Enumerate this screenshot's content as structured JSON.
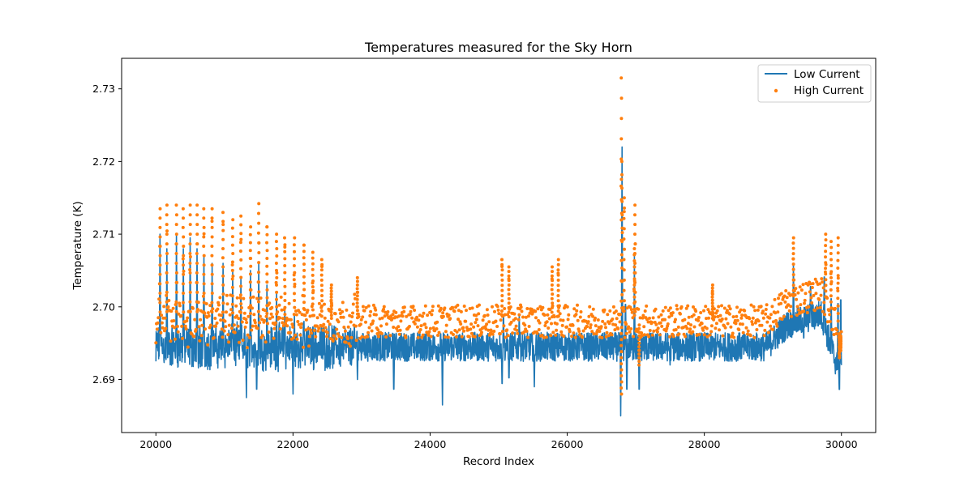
{
  "chart_data": {
    "type": "line+scatter",
    "title": "Temperatures measured for the Sky Horn",
    "xlabel": "Record Index",
    "ylabel": "Temperature (K)",
    "xlim": [
      19500,
      30500
    ],
    "ylim": [
      2.6827,
      2.7342
    ],
    "xticks": [
      20000,
      22000,
      24000,
      26000,
      28000,
      30000
    ],
    "yticks": [
      2.69,
      2.7,
      2.71,
      2.72,
      2.73
    ],
    "xtick_labels": [
      "20000",
      "22000",
      "24000",
      "26000",
      "28000",
      "30000"
    ],
    "ytick_labels": [
      "2.69",
      "2.70",
      "2.71",
      "2.72",
      "2.73"
    ],
    "legend_position": "top-right",
    "x_range": [
      20000,
      30000
    ],
    "series": [
      {
        "name": "Low Current",
        "kind": "line",
        "color": "#1f77b4",
        "baseline": 2.6945,
        "noise_range": [
          2.6925,
          2.6965
        ],
        "profile_x": [
          20000,
          23000,
          28900,
          29200,
          29700,
          30000
        ],
        "profile_y": [
          2.6945,
          2.6945,
          2.6945,
          2.6975,
          2.699,
          2.69
        ],
        "spikes": [
          {
            "x": 20000,
            "y": 2.6925
          },
          {
            "x": 20060,
            "y": 2.71
          },
          {
            "x": 20160,
            "y": 2.708
          },
          {
            "x": 20300,
            "y": 2.71
          },
          {
            "x": 20400,
            "y": 2.708
          },
          {
            "x": 20500,
            "y": 2.7095
          },
          {
            "x": 20600,
            "y": 2.708
          },
          {
            "x": 20650,
            "y": 2.691
          },
          {
            "x": 20700,
            "y": 2.707
          },
          {
            "x": 20820,
            "y": 2.706
          },
          {
            "x": 20980,
            "y": 2.706
          },
          {
            "x": 21120,
            "y": 2.705
          },
          {
            "x": 21240,
            "y": 2.704
          },
          {
            "x": 21320,
            "y": 2.6875
          },
          {
            "x": 21380,
            "y": 2.705
          },
          {
            "x": 21470,
            "y": 2.687
          },
          {
            "x": 21500,
            "y": 2.706
          },
          {
            "x": 21620,
            "y": 2.703
          },
          {
            "x": 21750,
            "y": 2.691
          },
          {
            "x": 21760,
            "y": 2.702
          },
          {
            "x": 21880,
            "y": 2.7
          },
          {
            "x": 22000,
            "y": 2.688
          },
          {
            "x": 22020,
            "y": 2.699
          },
          {
            "x": 22160,
            "y": 2.698
          },
          {
            "x": 22290,
            "y": 2.698
          },
          {
            "x": 22420,
            "y": 2.697
          },
          {
            "x": 22940,
            "y": 2.69
          },
          {
            "x": 23470,
            "y": 2.687
          },
          {
            "x": 24000,
            "y": 2.696
          },
          {
            "x": 24180,
            "y": 2.6865
          },
          {
            "x": 25050,
            "y": 2.688
          },
          {
            "x": 25070,
            "y": 2.7
          },
          {
            "x": 25150,
            "y": 2.689
          },
          {
            "x": 25300,
            "y": 2.699
          },
          {
            "x": 25520,
            "y": 2.689
          },
          {
            "x": 26780,
            "y": 2.685
          },
          {
            "x": 26800,
            "y": 2.722
          },
          {
            "x": 26850,
            "y": 2.702
          },
          {
            "x": 26870,
            "y": 2.687
          },
          {
            "x": 26980,
            "y": 2.707
          },
          {
            "x": 27050,
            "y": 2.687
          },
          {
            "x": 27500,
            "y": 2.692
          },
          {
            "x": 29300,
            "y": 2.706
          },
          {
            "x": 29450,
            "y": 2.695
          },
          {
            "x": 29550,
            "y": 2.704
          },
          {
            "x": 29750,
            "y": 2.706
          },
          {
            "x": 29850,
            "y": 2.703
          },
          {
            "x": 29950,
            "y": 2.703
          },
          {
            "x": 29970,
            "y": 2.688
          },
          {
            "x": 29990,
            "y": 2.704
          }
        ]
      },
      {
        "name": "High Current",
        "kind": "scatter",
        "color": "#ff7f0e",
        "baseline": 2.698,
        "noise_range": [
          2.6955,
          2.7
        ],
        "profile_x": [
          20000,
          23000,
          28900,
          29200,
          29700,
          30000
        ],
        "profile_y": [
          2.698,
          2.698,
          2.698,
          2.7005,
          2.702,
          2.696
        ],
        "spikes": [
          {
            "x": 20060,
            "y": 2.7135
          },
          {
            "x": 20160,
            "y": 2.714
          },
          {
            "x": 20300,
            "y": 2.714
          },
          {
            "x": 20400,
            "y": 2.7135
          },
          {
            "x": 20500,
            "y": 2.714
          },
          {
            "x": 20600,
            "y": 2.714
          },
          {
            "x": 20700,
            "y": 2.7135
          },
          {
            "x": 20820,
            "y": 2.7135
          },
          {
            "x": 20980,
            "y": 2.713
          },
          {
            "x": 21120,
            "y": 2.712
          },
          {
            "x": 21240,
            "y": 2.7125
          },
          {
            "x": 21380,
            "y": 2.711
          },
          {
            "x": 21500,
            "y": 2.7142
          },
          {
            "x": 21620,
            "y": 2.711
          },
          {
            "x": 21760,
            "y": 2.71
          },
          {
            "x": 21880,
            "y": 2.7095
          },
          {
            "x": 22020,
            "y": 2.7095
          },
          {
            "x": 22160,
            "y": 2.7085
          },
          {
            "x": 22290,
            "y": 2.7075
          },
          {
            "x": 22420,
            "y": 2.7065
          },
          {
            "x": 22560,
            "y": 2.703
          },
          {
            "x": 22940,
            "y": 2.704
          },
          {
            "x": 25050,
            "y": 2.7065
          },
          {
            "x": 25150,
            "y": 2.7055
          },
          {
            "x": 25870,
            "y": 2.7065
          },
          {
            "x": 25780,
            "y": 2.7055
          },
          {
            "x": 26790,
            "y": 2.7315
          },
          {
            "x": 26800,
            "y": 2.72
          },
          {
            "x": 26830,
            "y": 2.715
          },
          {
            "x": 26990,
            "y": 2.714
          },
          {
            "x": 26980,
            "y": 2.708
          },
          {
            "x": 26790,
            "y": 2.688
          },
          {
            "x": 27050,
            "y": 2.692
          },
          {
            "x": 28120,
            "y": 2.703
          },
          {
            "x": 29300,
            "y": 2.7095
          },
          {
            "x": 29770,
            "y": 2.71
          },
          {
            "x": 29850,
            "y": 2.709
          },
          {
            "x": 29950,
            "y": 2.7095
          },
          {
            "x": 29990,
            "y": 2.694
          },
          {
            "x": 29970,
            "y": 2.693
          }
        ]
      }
    ]
  }
}
